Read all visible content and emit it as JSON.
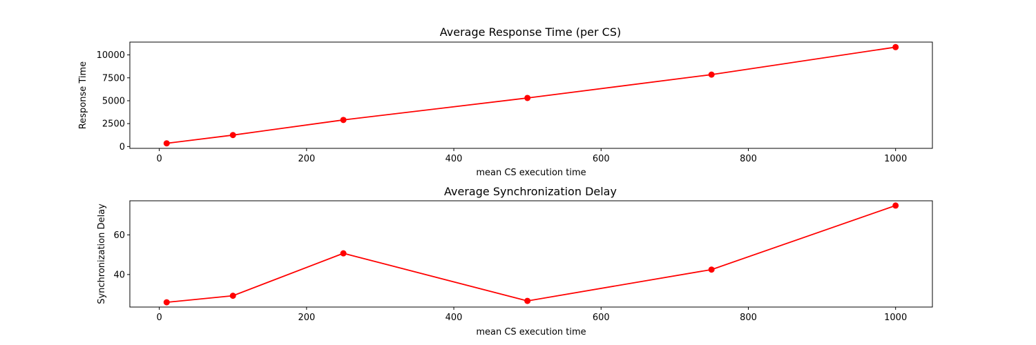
{
  "chart_data": [
    {
      "type": "line",
      "title": "Average Response Time (per CS)",
      "xlabel": "mean CS execution time",
      "ylabel": "Response Time",
      "x": [
        10,
        100,
        250,
        500,
        750,
        1000
      ],
      "series": [
        {
          "values": [
            350,
            1250,
            2900,
            5300,
            7850,
            10850
          ],
          "color": "#ff0000"
        }
      ],
      "xlim": [
        -40,
        1050
      ],
      "ylim": [
        -200,
        11400
      ],
      "xticks": [
        0,
        200,
        400,
        600,
        800,
        1000
      ],
      "yticks": [
        0,
        2500,
        5000,
        7500,
        10000
      ],
      "grid": false
    },
    {
      "type": "line",
      "title": "Average Synchronization Delay",
      "xlabel": "mean CS execution time",
      "ylabel": "Synchronization Delay",
      "x": [
        10,
        100,
        250,
        500,
        750,
        1000
      ],
      "series": [
        {
          "values": [
            26,
            29.3,
            50.7,
            26.7,
            42.5,
            74.8
          ],
          "color": "#ff0000"
        }
      ],
      "xlim": [
        -40,
        1050
      ],
      "ylim": [
        23.6,
        77.2
      ],
      "xticks": [
        0,
        200,
        400,
        600,
        800,
        1000
      ],
      "yticks": [
        40,
        60
      ],
      "grid": false
    }
  ]
}
